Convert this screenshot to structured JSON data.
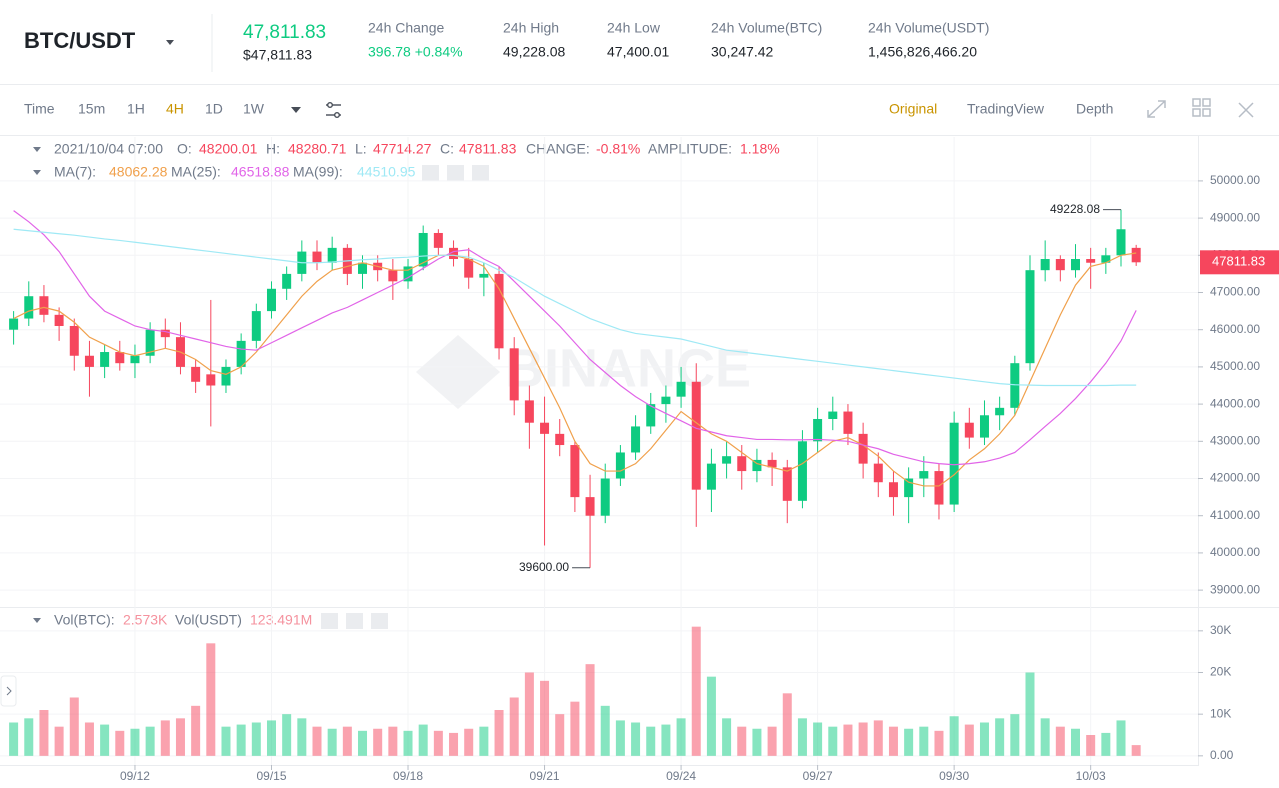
{
  "header": {
    "symbol": "BTC/USDT",
    "last_price": "47,811.83",
    "last_price_usd": "$47,811.83",
    "stats": [
      {
        "label": "24h Change",
        "value": "396.78 +0.84%"
      },
      {
        "label": "24h High",
        "value": "49,228.08"
      },
      {
        "label": "24h Low",
        "value": "47,400.01"
      },
      {
        "label": "24h Volume(BTC)",
        "value": "30,247.42"
      },
      {
        "label": "24h Volume(USDT)",
        "value": "1,456,826,466.20"
      }
    ]
  },
  "toolbar": {
    "intervals": [
      "Time",
      "15m",
      "1H",
      "4H",
      "1D",
      "1W"
    ],
    "views": [
      "Original",
      "TradingView",
      "Depth"
    ]
  },
  "watermark": "BINANCE",
  "chart_data": [
    {
      "type": "candlestick",
      "info": {
        "time": "2021/10/04 07:00",
        "open_label": "O:",
        "high_label": "H:",
        "low_label": "L:",
        "close_label": "C:",
        "change_label": "CHANGE:",
        "change": "-0.81%",
        "amplitude_label": "AMPLITUDE:",
        "amplitude": "1.18%"
      },
      "up_color": "#0ecb81",
      "down_color": "#f6465d",
      "open": [
        46000,
        46300,
        46900,
        46400,
        46100,
        45300,
        45000,
        45400,
        45100,
        45300,
        46000,
        45800,
        45000,
        44800,
        44500,
        45000,
        45700,
        46500,
        47100,
        47500,
        48100,
        47800,
        48200,
        47500,
        47800,
        47600,
        47300,
        47700,
        48600,
        48200,
        47900,
        47400,
        47500,
        45500,
        44100,
        43500,
        43200,
        42900,
        41500,
        41000,
        42000,
        42700,
        43400,
        44000,
        44200,
        44600,
        41700,
        42400,
        42600,
        42200,
        42500,
        42300,
        41400,
        43000,
        43600,
        43800,
        43200,
        42400,
        41900,
        41500,
        42000,
        42200,
        41300,
        43500,
        43100,
        43700,
        43900,
        45100,
        47600,
        47900,
        47600,
        47900,
        47800,
        48000,
        48200.01
      ],
      "high": [
        46500,
        47300,
        47200,
        46600,
        46300,
        45700,
        45600,
        45700,
        45600,
        46200,
        46300,
        46200,
        45200,
        46800,
        45200,
        45900,
        46700,
        47300,
        47700,
        48400,
        48400,
        48500,
        48300,
        48000,
        48000,
        47900,
        47900,
        48800,
        48700,
        48400,
        48200,
        47800,
        47700,
        45800,
        44500,
        44200,
        43600,
        43000,
        42100,
        42400,
        42900,
        43700,
        44300,
        44500,
        45000,
        45100,
        42800,
        43000,
        42900,
        42800,
        42700,
        42500,
        43300,
        43900,
        44200,
        44000,
        43500,
        42700,
        42200,
        42300,
        42600,
        42400,
        43800,
        43900,
        44100,
        44200,
        45300,
        48000,
        48400,
        48000,
        48300,
        48200,
        48200,
        49228.08,
        48280.71
      ],
      "low": [
        45600,
        46100,
        46200,
        45700,
        44900,
        44200,
        44700,
        44900,
        44700,
        45100,
        45500,
        44800,
        44300,
        43400,
        44300,
        44800,
        45500,
        46300,
        46800,
        47300,
        47600,
        47600,
        47200,
        47100,
        47300,
        46800,
        47100,
        47600,
        48000,
        47700,
        47100,
        46900,
        45200,
        43700,
        42800,
        40200,
        42600,
        41100,
        39600,
        40800,
        41800,
        42500,
        43200,
        43500,
        43900,
        40700,
        41100,
        42000,
        41700,
        41900,
        41800,
        40800,
        41200,
        42700,
        43300,
        42900,
        42000,
        41500,
        41000,
        40800,
        41500,
        40900,
        41100,
        42800,
        42900,
        43300,
        43700,
        44900,
        47300,
        47300,
        47400,
        47100,
        47500,
        47700,
        47714.27
      ],
      "close": [
        46300,
        46900,
        46400,
        46100,
        45300,
        45000,
        45400,
        45100,
        45300,
        46000,
        45800,
        45000,
        44600,
        44500,
        45000,
        45700,
        46500,
        47100,
        47500,
        48100,
        47800,
        48200,
        47500,
        47800,
        47600,
        47300,
        47700,
        48600,
        48200,
        47900,
        47400,
        47500,
        45500,
        44100,
        43500,
        43200,
        42900,
        41500,
        41000,
        42000,
        42700,
        43400,
        44000,
        44200,
        44600,
        41700,
        42400,
        42600,
        42200,
        42500,
        42300,
        41400,
        43000,
        43600,
        43800,
        43200,
        42400,
        41900,
        41500,
        42000,
        42200,
        41300,
        43500,
        43100,
        43700,
        43900,
        45100,
        47600,
        47900,
        47600,
        47900,
        47800,
        48000,
        48700,
        47811.83
      ],
      "series": [
        {
          "name": "MA(7):",
          "color": "#f0a04b",
          "values": [
            46300,
            46500,
            46600,
            46500,
            46200,
            45800,
            45600,
            45400,
            45300,
            45400,
            45500,
            45400,
            45200,
            44900,
            44800,
            45000,
            45400,
            45900,
            46400,
            46900,
            47300,
            47600,
            47700,
            47800,
            47700,
            47600,
            47600,
            47800,
            48000,
            48000,
            47900,
            47700,
            47100,
            46300,
            45500,
            44700,
            43900,
            43000,
            42400,
            42200,
            42200,
            42400,
            42800,
            43300,
            43800,
            43500,
            43200,
            43000,
            42700,
            42400,
            42300,
            42200,
            42400,
            42700,
            43000,
            43100,
            42900,
            42600,
            42200,
            41900,
            41800,
            41800,
            42100,
            42500,
            42800,
            43200,
            43700,
            44600,
            45500,
            46400,
            47200,
            47700,
            47800,
            48000,
            48062.28
          ]
        },
        {
          "name": "MA(25):",
          "color": "#e164e8",
          "values": [
            49200,
            48900,
            48550,
            48100,
            47500,
            46900,
            46500,
            46300,
            46100,
            46000,
            45950,
            45850,
            45750,
            45650,
            45550,
            45480,
            45450,
            45650,
            45850,
            46050,
            46250,
            46450,
            46600,
            46800,
            47000,
            47200,
            47400,
            47650,
            47900,
            48100,
            48150,
            47900,
            47700,
            47300,
            46900,
            46500,
            46100,
            45650,
            45200,
            44850,
            44500,
            44200,
            43950,
            43750,
            43550,
            43350,
            43250,
            43150,
            43100,
            43050,
            43050,
            43040,
            43040,
            43050,
            43030,
            43000,
            42900,
            42800,
            42650,
            42550,
            42450,
            42400,
            42370,
            42400,
            42450,
            42550,
            42700,
            43040,
            43400,
            43750,
            44150,
            44600,
            45100,
            45700,
            46518.88
          ]
        },
        {
          "name": "MA(99):",
          "color": "#9fe9f5",
          "values": [
            48700,
            48660,
            48620,
            48580,
            48540,
            48490,
            48440,
            48400,
            48350,
            48300,
            48250,
            48200,
            48150,
            48100,
            48050,
            48000,
            47950,
            47900,
            47850,
            47800,
            47800,
            47820,
            47850,
            47880,
            47900,
            47930,
            47950,
            47980,
            48000,
            48000,
            47950,
            47800,
            47600,
            47400,
            47150,
            46900,
            46700,
            46500,
            46300,
            46150,
            46000,
            45900,
            45850,
            45800,
            45750,
            45650,
            45550,
            45450,
            45400,
            45350,
            45300,
            45250,
            45200,
            45150,
            45100,
            45050,
            45000,
            44950,
            44900,
            44850,
            44800,
            44750,
            44700,
            44650,
            44600,
            44550,
            44520,
            44510,
            44500,
            44500,
            44500,
            44500,
            44500,
            44510,
            44510.95
          ]
        }
      ],
      "annotations": [
        {
          "value": 49228.08,
          "label": "49228.08"
        },
        {
          "value": 39600,
          "label": "39600.00"
        }
      ],
      "ylim": [
        38600,
        51180
      ],
      "yticks": [
        {
          "value": 39000,
          "label": "39000.00"
        },
        {
          "value": 40000,
          "label": "40000.00"
        },
        {
          "value": 41000,
          "label": "41000.00"
        },
        {
          "value": 42000,
          "label": "42000.00"
        },
        {
          "value": 43000,
          "label": "43000.00"
        },
        {
          "value": 44000,
          "label": "44000.00"
        },
        {
          "value": 45000,
          "label": "45000.00"
        },
        {
          "value": 46000,
          "label": "46000.00"
        },
        {
          "value": 47000,
          "label": "47000.00"
        },
        {
          "value": 48000,
          "label": "48000.00"
        },
        {
          "value": 49000,
          "label": "49000.00"
        },
        {
          "value": 50000,
          "label": "50000.00"
        }
      ],
      "grid": true
    },
    {
      "type": "bar",
      "legend": [
        {
          "name": "Vol(BTC):",
          "value": "2.573K"
        },
        {
          "name": "Vol(USDT)",
          "value": "123.491M"
        }
      ],
      "categories": [
        null,
        null,
        null,
        null,
        null,
        null,
        null,
        null,
        "09/12",
        null,
        null,
        null,
        null,
        null,
        null,
        null,
        null,
        "09/15",
        null,
        null,
        null,
        null,
        null,
        null,
        null,
        null,
        "09/18",
        null,
        null,
        null,
        null,
        null,
        null,
        null,
        null,
        "09/21",
        null,
        null,
        null,
        null,
        null,
        null,
        null,
        null,
        "09/24",
        null,
        null,
        null,
        null,
        null,
        null,
        null,
        null,
        "09/27",
        null,
        null,
        null,
        null,
        null,
        null,
        null,
        null,
        "09/30",
        null,
        null,
        null,
        null,
        null,
        null,
        null,
        null,
        "10/03",
        null,
        null,
        null
      ],
      "values": [
        8000,
        9000,
        11000,
        7000,
        14000,
        8000,
        7500,
        6000,
        6500,
        7000,
        8500,
        9000,
        12000,
        27000,
        7000,
        7500,
        8000,
        8500,
        10000,
        9000,
        7000,
        6500,
        7000,
        6000,
        6500,
        7000,
        6000,
        7500,
        6000,
        5500,
        6500,
        7000,
        11000,
        14000,
        20000,
        18000,
        10000,
        13000,
        22000,
        12000,
        8500,
        8000,
        7000,
        7500,
        9000,
        31000,
        19000,
        9000,
        7000,
        6500,
        7000,
        15000,
        9000,
        8000,
        7000,
        7500,
        8000,
        8500,
        7000,
        6500,
        7000,
        6000,
        9500,
        7500,
        8000,
        9000,
        10000,
        20000,
        9000,
        7000,
        6500,
        5000,
        5500,
        8500,
        2573
      ],
      "ylim": [
        -2200,
        35000
      ],
      "yticks": [
        {
          "value": 0,
          "label": "0.00"
        },
        {
          "value": 10000,
          "label": "10K"
        },
        {
          "value": 20000,
          "label": "20K"
        },
        {
          "value": 30000,
          "label": "30K"
        }
      ],
      "grid": true
    }
  ]
}
